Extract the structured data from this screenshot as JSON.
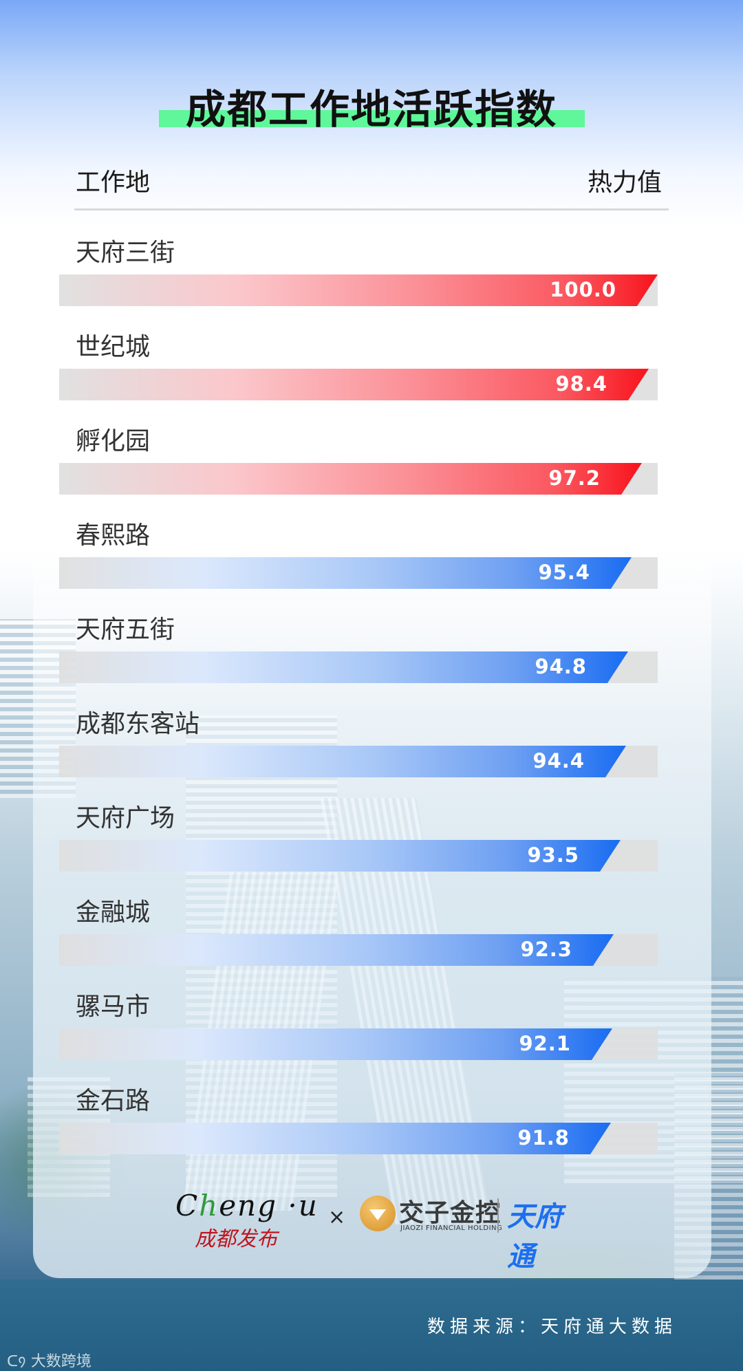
{
  "title": "成都工作地活跃指数",
  "header": {
    "left": "工作地",
    "right": "热力值"
  },
  "rows": [
    {
      "label": "天府三街",
      "value": "100.0",
      "color": "red"
    },
    {
      "label": "世纪城",
      "value": "98.4",
      "color": "red"
    },
    {
      "label": "孵化园",
      "value": "97.2",
      "color": "red"
    },
    {
      "label": "春熙路",
      "value": "95.4",
      "color": "blue"
    },
    {
      "label": "天府五街",
      "value": "94.8",
      "color": "blue"
    },
    {
      "label": "成都东客站",
      "value": "94.4",
      "color": "blue"
    },
    {
      "label": "天府广场",
      "value": "93.5",
      "color": "blue"
    },
    {
      "label": "金融城",
      "value": "92.3",
      "color": "blue"
    },
    {
      "label": "骡马市",
      "value": "92.1",
      "color": "blue"
    },
    {
      "label": "金石路",
      "value": "91.8",
      "color": "blue"
    }
  ],
  "logos": {
    "chengdu_en_pre": "C",
    "chengdu_en_h": "h",
    "chengdu_en_post": "eng ·u",
    "chengdu_cn": "成都发布",
    "times": "×",
    "jiaozi_cn": "交子金控",
    "jiaozi_en": "JIAOZI FINANCIAL HOLDING",
    "tianfutong": "天府通"
  },
  "source": "数据来源：天府通大数据",
  "watermark": "大数跨境",
  "colors": {
    "red_accent": "#f8131c",
    "blue_accent": "#196cf2",
    "track": "#dedede",
    "title_highlight": "#5ff79a"
  },
  "chart_data": {
    "type": "bar",
    "orientation": "horizontal",
    "title": "成都工作地活跃指数",
    "xlabel": "热力值",
    "ylabel": "工作地",
    "categories": [
      "天府三街",
      "世纪城",
      "孵化园",
      "春熙路",
      "天府五街",
      "成都东客站",
      "天府广场",
      "金融城",
      "骡马市",
      "金石路"
    ],
    "values": [
      100.0,
      98.4,
      97.2,
      95.4,
      94.8,
      94.4,
      93.5,
      92.3,
      92.1,
      91.8
    ],
    "highlight_top_n": 3,
    "grid": false,
    "legend": null,
    "source": "数据来源：天府通大数据"
  }
}
